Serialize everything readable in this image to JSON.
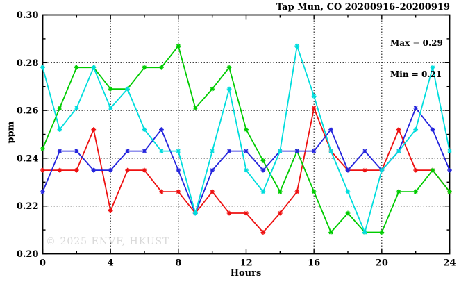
{
  "page": {
    "background": "#ffffff"
  },
  "colors": {
    "axis": "#000000",
    "grid": "#000000",
    "text": "#000000",
    "watermark": "#d8d8d8",
    "background": "#ffffff"
  },
  "chart_data": {
    "type": "line",
    "title": "Tap Mun, CO 20200916–20200919",
    "xlabel": "Hours",
    "ylabel": "ppm",
    "xlim": [
      0,
      24
    ],
    "ylim": [
      0.2,
      0.3
    ],
    "grid": true,
    "legend_position": "none",
    "x_major_ticks": [
      0,
      4,
      8,
      12,
      16,
      20,
      24
    ],
    "x_tick_labels": [
      "0",
      "4",
      "8",
      "12",
      "16",
      "20",
      "24"
    ],
    "x_minor_ticks": [
      2,
      6,
      10,
      14,
      18,
      22
    ],
    "y_major_ticks": [
      0.2,
      0.22,
      0.24,
      0.26,
      0.28,
      0.3
    ],
    "y_tick_labels": [
      "0.20",
      "0.22",
      "0.24",
      "0.26",
      "0.28",
      "0.30"
    ],
    "y_minor_ticks": [
      0.21,
      0.23,
      0.25,
      0.27,
      0.29
    ],
    "grid_x": [
      4,
      8,
      12,
      16,
      20
    ],
    "grid_y": [
      0.22,
      0.24,
      0.26,
      0.28
    ],
    "x": [
      0,
      1,
      2,
      3,
      4,
      5,
      6,
      7,
      8,
      9,
      10,
      11,
      12,
      13,
      14,
      15,
      16,
      17,
      18,
      19,
      20,
      21,
      22,
      23,
      24
    ],
    "series": [
      {
        "name": "series-red",
        "color": "#ee1111",
        "values": [
          0.235,
          0.235,
          0.235,
          0.252,
          0.218,
          0.235,
          0.235,
          0.226,
          0.226,
          0.217,
          0.226,
          0.217,
          0.217,
          0.209,
          0.217,
          0.226,
          0.261,
          0.243,
          0.235,
          0.235,
          0.235,
          0.252,
          0.235,
          0.235,
          0.226
        ]
      },
      {
        "name": "series-green",
        "color": "#00cc00",
        "values": [
          0.244,
          0.261,
          0.278,
          0.278,
          0.269,
          0.269,
          0.278,
          0.278,
          0.287,
          0.261,
          0.269,
          0.278,
          0.252,
          0.239,
          0.226,
          0.243,
          0.226,
          0.209,
          0.217,
          0.209,
          0.209,
          0.226,
          0.226,
          0.235,
          0.226
        ]
      },
      {
        "name": "series-blue",
        "color": "#2525dd",
        "values": [
          0.226,
          0.243,
          0.243,
          0.235,
          0.235,
          0.243,
          0.243,
          0.252,
          0.235,
          0.217,
          0.235,
          0.243,
          0.243,
          0.235,
          0.243,
          0.243,
          0.243,
          0.252,
          0.235,
          0.243,
          0.235,
          0.243,
          0.261,
          0.252,
          0.235
        ]
      },
      {
        "name": "series-cyan",
        "color": "#00dddd",
        "values": [
          0.278,
          0.252,
          0.261,
          0.278,
          0.261,
          0.269,
          0.252,
          0.243,
          0.243,
          0.217,
          0.243,
          0.269,
          0.235,
          0.226,
          0.243,
          0.287,
          0.266,
          0.243,
          0.226,
          0.209,
          0.235,
          0.243,
          0.252,
          0.278,
          0.243
        ]
      }
    ],
    "annotations": {
      "max": "Max = 0.29",
      "min": "Min = 0.21"
    },
    "watermark": "© 2025 ENVF, HKUST"
  }
}
